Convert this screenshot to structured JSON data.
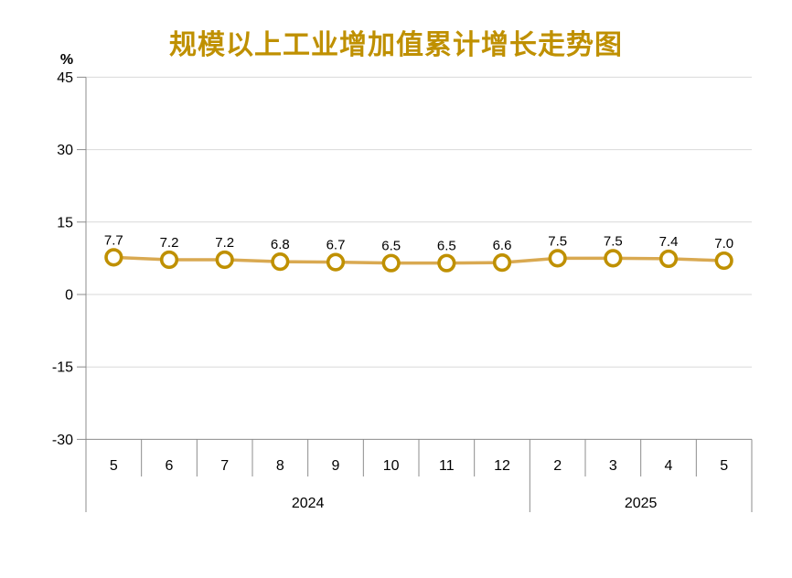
{
  "page": {
    "background": "#FFFFFF"
  },
  "chart_data": {
    "type": "line",
    "title": "规模以上工业增加值累计增长走势图",
    "ylabel": "%",
    "ylim": [
      -30,
      45
    ],
    "yticks": [
      45,
      30,
      15,
      0,
      -15,
      -30
    ],
    "grid": true,
    "legend": false,
    "data_labels": true,
    "x_groups": [
      {
        "year": "2024",
        "months": [
          "5",
          "6",
          "7",
          "8",
          "9",
          "10",
          "11",
          "12"
        ]
      },
      {
        "year": "2025",
        "months": [
          "2",
          "3",
          "4",
          "5"
        ]
      }
    ],
    "categories": [
      "5",
      "6",
      "7",
      "8",
      "9",
      "10",
      "11",
      "12",
      "2",
      "3",
      "4",
      "5"
    ],
    "values": [
      7.7,
      7.2,
      7.2,
      6.8,
      6.7,
      6.5,
      6.5,
      6.6,
      7.5,
      7.5,
      7.4,
      7.0
    ],
    "colors": {
      "title": "#BF9000",
      "line": "#D9A951",
      "marker_ring": "#BF9000",
      "marker_fill": "#FFFFFF",
      "gridline": "#D9D9D9",
      "axis": "#8C8C8C",
      "text": "#000000"
    }
  }
}
